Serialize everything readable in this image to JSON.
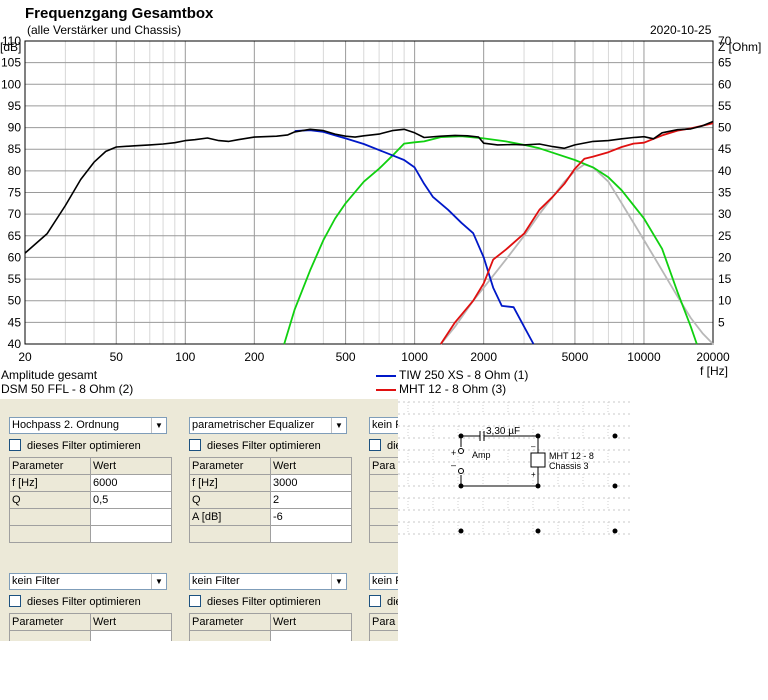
{
  "header": {
    "title": "Frequenzgang Gesamtbox",
    "subtitle": "(alle Verstärker und Chassis)",
    "date": "2020-10-25"
  },
  "chart_data": {
    "type": "line",
    "title": "Frequenzgang Gesamtbox",
    "subtitle": "(alle Verstärker und Chassis)",
    "x_scale": "log",
    "xlim": [
      20,
      20000
    ],
    "xunit": "f [Hz]",
    "x_ticks": [
      "20",
      "50",
      "100",
      "200",
      "500",
      "1000",
      "2000",
      "5000",
      "10000",
      "20000"
    ],
    "ylim_left": [
      40,
      110
    ],
    "yunit_left": "[dB]",
    "y_ticks_left": [
      "40",
      "45",
      "50",
      "55",
      "60",
      "65",
      "70",
      "75",
      "80",
      "85",
      "90",
      "95",
      "100",
      "105",
      "110"
    ],
    "ylim_right": [
      0,
      70
    ],
    "yunit_right": "Z [Ohm]",
    "y_ticks_right": [
      "5",
      "10",
      "15",
      "20",
      "25",
      "30",
      "35",
      "40",
      "45",
      "50",
      "55",
      "60",
      "65",
      "70"
    ],
    "grid": true,
    "series": [
      {
        "name": "Amplitude gesamt",
        "color": "#000000",
        "points": [
          [
            20,
            61
          ],
          [
            25,
            65.5
          ],
          [
            30,
            72
          ],
          [
            35,
            78
          ],
          [
            40,
            82
          ],
          [
            45,
            84.5
          ],
          [
            50,
            85.5
          ],
          [
            60,
            85.8
          ],
          [
            70,
            86
          ],
          [
            80,
            86.2
          ],
          [
            90,
            86.5
          ],
          [
            100,
            87
          ],
          [
            110,
            87.2
          ],
          [
            125,
            87.6
          ],
          [
            140,
            87
          ],
          [
            155,
            86.8
          ],
          [
            170,
            87.2
          ],
          [
            200,
            87.8
          ],
          [
            250,
            88
          ],
          [
            280,
            88.3
          ],
          [
            300,
            89
          ],
          [
            350,
            89.6
          ],
          [
            400,
            89.3
          ],
          [
            450,
            88.5
          ],
          [
            500,
            88
          ],
          [
            550,
            87.8
          ],
          [
            600,
            88.1
          ],
          [
            700,
            88.5
          ],
          [
            800,
            89.3
          ],
          [
            900,
            89.6
          ],
          [
            1000,
            88.8
          ],
          [
            1100,
            87.7
          ],
          [
            1300,
            88
          ],
          [
            1500,
            88.2
          ],
          [
            1700,
            88.1
          ],
          [
            1900,
            87.8
          ],
          [
            2000,
            86.4
          ],
          [
            2300,
            86
          ],
          [
            2700,
            86.1
          ],
          [
            3000,
            86
          ],
          [
            3500,
            86.2
          ],
          [
            4000,
            85.6
          ],
          [
            4500,
            85.2
          ],
          [
            5000,
            86
          ],
          [
            6000,
            86.8
          ],
          [
            7000,
            87
          ],
          [
            8000,
            87.4
          ],
          [
            9000,
            87.7
          ],
          [
            10000,
            87.9
          ],
          [
            11000,
            87.4
          ],
          [
            12000,
            88.8
          ],
          [
            14000,
            89.5
          ],
          [
            16000,
            89.7
          ],
          [
            18000,
            90.4
          ],
          [
            20000,
            91.4
          ]
        ]
      },
      {
        "name": "TIW 250 XS - 8 Ohm (1)",
        "color": "#0018c8",
        "points": [
          [
            300,
            89.2
          ],
          [
            350,
            89.4
          ],
          [
            400,
            89
          ],
          [
            450,
            88.2
          ],
          [
            500,
            87.5
          ],
          [
            600,
            86.2
          ],
          [
            700,
            84.8
          ],
          [
            800,
            83.6
          ],
          [
            900,
            82.5
          ],
          [
            1000,
            80.8
          ],
          [
            1100,
            77
          ],
          [
            1200,
            74
          ],
          [
            1400,
            71
          ],
          [
            1600,
            68
          ],
          [
            1800,
            65.6
          ],
          [
            2000,
            60
          ],
          [
            2200,
            53
          ],
          [
            2400,
            48.8
          ],
          [
            2700,
            48.5
          ],
          [
            3000,
            44
          ],
          [
            3300,
            40
          ]
        ]
      },
      {
        "name": "DSM 50 FFL - 8 Ohm (2)",
        "color": "#10d010",
        "points": [
          [
            270,
            40
          ],
          [
            300,
            48
          ],
          [
            350,
            57
          ],
          [
            400,
            64
          ],
          [
            450,
            69
          ],
          [
            500,
            72.5
          ],
          [
            600,
            77.5
          ],
          [
            700,
            80.5
          ],
          [
            800,
            83.5
          ],
          [
            900,
            86.3
          ],
          [
            1000,
            86.6
          ],
          [
            1100,
            86.8
          ],
          [
            1300,
            87.8
          ],
          [
            1600,
            88
          ],
          [
            2000,
            87.5
          ],
          [
            2500,
            86.8
          ],
          [
            3000,
            86
          ],
          [
            3500,
            85.2
          ],
          [
            4000,
            84.2
          ],
          [
            5000,
            82.5
          ],
          [
            6000,
            80.8
          ],
          [
            7000,
            78.5
          ],
          [
            8000,
            75.5
          ],
          [
            10000,
            69
          ],
          [
            12000,
            62
          ],
          [
            14000,
            52
          ],
          [
            16000,
            44
          ],
          [
            17000,
            40
          ]
        ]
      },
      {
        "name": "MHT 12 - 8 Ohm (3)",
        "color": "#e01010",
        "points": [
          [
            1300,
            40
          ],
          [
            1500,
            45
          ],
          [
            1800,
            50
          ],
          [
            2000,
            54
          ],
          [
            2200,
            59.5
          ],
          [
            2500,
            61.8
          ],
          [
            3000,
            65.5
          ],
          [
            3500,
            71
          ],
          [
            4000,
            74
          ],
          [
            4500,
            77
          ],
          [
            5000,
            80.5
          ],
          [
            5500,
            82.8
          ],
          [
            6000,
            83.3
          ],
          [
            7000,
            84.3
          ],
          [
            8000,
            85.5
          ],
          [
            9000,
            86.3
          ],
          [
            10000,
            86.5
          ],
          [
            12000,
            88.2
          ],
          [
            14000,
            89.3
          ],
          [
            16000,
            89.8
          ],
          [
            20000,
            91
          ]
        ]
      },
      {
        "name": "",
        "color": "#b8b8b8",
        "points": [
          [
            1300,
            40
          ],
          [
            1500,
            44
          ],
          [
            1800,
            50
          ],
          [
            2000,
            53
          ],
          [
            2500,
            59.5
          ],
          [
            3000,
            65
          ],
          [
            3500,
            70
          ],
          [
            4000,
            74
          ],
          [
            4500,
            77.5
          ],
          [
            5000,
            80
          ],
          [
            5500,
            81.5
          ],
          [
            6000,
            80.8
          ],
          [
            7000,
            77.5
          ],
          [
            8000,
            72.5
          ],
          [
            10000,
            64
          ],
          [
            12000,
            57
          ],
          [
            14000,
            51
          ],
          [
            16000,
            46
          ],
          [
            18000,
            42.5
          ],
          [
            20000,
            40
          ]
        ]
      }
    ]
  },
  "legend": {
    "amp": "Amplitude gesamt",
    "s1": "TIW 250 XS - 8 Ohm (1)",
    "s2": "DSM 50 FFL - 8 Ohm (2)",
    "s3": "MHT 12 - 8 Ohm (3)",
    "colors": {
      "s1": "#0018c8",
      "s2": "#10d010",
      "s3": "#e01010"
    }
  },
  "filters": {
    "param_col": "Parameter",
    "value_col": "Wert",
    "optimize_label": "dieses Filter optimieren",
    "f1": {
      "type": "Hochpass 2. Ordnung",
      "rows": [
        {
          "p": "f [Hz]",
          "v": "6000"
        },
        {
          "p": "Q",
          "v": "0,5"
        },
        {
          "p": "",
          "v": ""
        },
        {
          "p": "",
          "v": ""
        }
      ]
    },
    "f2": {
      "type": "parametrischer Equalizer",
      "rows": [
        {
          "p": "f [Hz]",
          "v": "3000"
        },
        {
          "p": "Q",
          "v": "2"
        },
        {
          "p": "A [dB]",
          "v": "-6"
        },
        {
          "p": "",
          "v": ""
        }
      ]
    },
    "f3": {
      "type": "kein Filter",
      "optimize_label": "die",
      "param_col": "Para"
    },
    "f4": {
      "type": "kein Filter"
    },
    "f5": {
      "type": "kein Filter"
    },
    "f6": {
      "type": "kein Filter",
      "optimize_label": "die",
      "param_col": "Para"
    }
  },
  "circuit": {
    "capacitor": "3,30 µF",
    "amp": "Amp",
    "chassis_name": "MHT 12 - 8",
    "chassis_num": "Chassis 3",
    "plus": "+",
    "minus": "–"
  }
}
